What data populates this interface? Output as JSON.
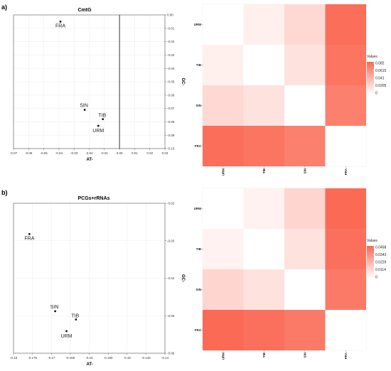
{
  "chart_data": [
    {
      "type": "scatter",
      "panel": "a)",
      "title": "CmtG",
      "xlabel": "AT-",
      "ylabel": "GC-",
      "xlim": [
        -0.07,
        0.03
      ],
      "ylim": [
        -0.1,
        0.0
      ],
      "x_ticks": [
        "-0.07",
        "-0.06",
        "-0.05",
        "-0.04",
        "-0.03",
        "-0.02",
        "-0.01",
        "0.00",
        "0.01",
        "0.02",
        "0.03"
      ],
      "y_ticks": [
        "0.00",
        "-0.01",
        "-0.02",
        "-0.03",
        "-0.04",
        "-0.05",
        "-0.06",
        "-0.07",
        "-0.08",
        "-0.09",
        "-0.10"
      ],
      "points": [
        {
          "label": "FRA",
          "x": -0.039,
          "y": -0.005
        },
        {
          "label": "SIN",
          "x": -0.023,
          "y": -0.071
        },
        {
          "label": "TIB",
          "x": -0.011,
          "y": -0.078
        },
        {
          "label": "URM",
          "x": -0.014,
          "y": -0.083
        }
      ]
    },
    {
      "type": "heatmap",
      "categories": [
        "URM",
        "TIB",
        "SIN",
        "FRA"
      ],
      "values": [
        [
          0,
          0.008,
          0.021,
          0.08
        ],
        [
          0.008,
          0,
          0.016,
          0.076
        ],
        [
          0.021,
          0.016,
          0,
          0.07
        ],
        [
          0.08,
          0.076,
          0.07,
          0
        ]
      ],
      "legend_title": "Values",
      "legend_ticks": [
        "0.082",
        "0.0615",
        "0.041",
        "0.0205",
        "0"
      ],
      "vmax": 0.082,
      "color_low": "#ffffff",
      "color_high": "#fb6a55"
    },
    {
      "type": "scatter",
      "panel": "b)",
      "title": "PCGs+rRNAs",
      "xlabel": "AT-",
      "ylabel": "GC-",
      "xlim": [
        -0.18,
        -0.14
      ],
      "ylim": [
        -0.06,
        -0.02
      ],
      "x_ticks": [
        "-0.18",
        "-0.175",
        "-0.17",
        "-0.165",
        "-0.16",
        "-0.155",
        "-0.15",
        "-0.145",
        "-0.14"
      ],
      "y_ticks": [
        "-0.02",
        "-0.03",
        "-0.04",
        "-0.05",
        "-0.06"
      ],
      "points": [
        {
          "label": "FRA",
          "x": -0.1758,
          "y": -0.0282
        },
        {
          "label": "SIN",
          "x": -0.169,
          "y": -0.0488
        },
        {
          "label": "TIB",
          "x": -0.1635,
          "y": -0.051
        },
        {
          "label": "URM",
          "x": -0.166,
          "y": -0.0541
        }
      ]
    },
    {
      "type": "heatmap",
      "categories": [
        "URM",
        "TIB",
        "SIN",
        "FRA"
      ],
      "values": [
        [
          0,
          0.004,
          0.013,
          0.0458
        ],
        [
          0.004,
          0,
          0.009,
          0.044
        ],
        [
          0.013,
          0.009,
          0,
          0.041
        ],
        [
          0.0458,
          0.044,
          0.041,
          0
        ]
      ],
      "legend_title": "Values",
      "legend_ticks": [
        "0.0458",
        "0.0343",
        "0.0229",
        "0.0114",
        "0"
      ],
      "vmax": 0.0458,
      "color_low": "#ffffff",
      "color_high": "#fb6a55"
    }
  ]
}
